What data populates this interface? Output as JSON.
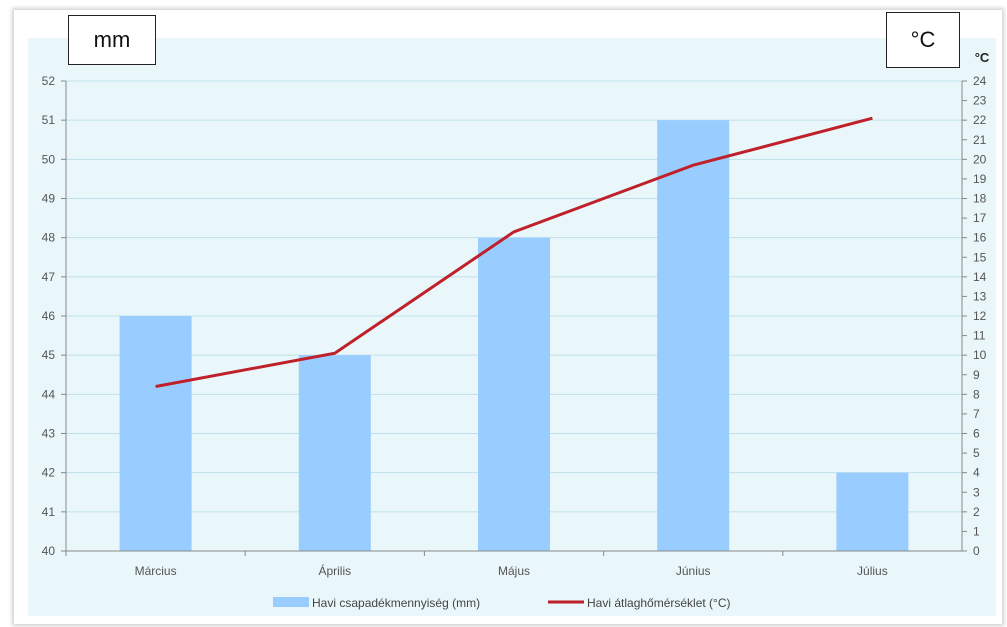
{
  "chart_data": {
    "type": "bar+line",
    "categories": [
      "Március",
      "Április",
      "Május",
      "Június",
      "Július"
    ],
    "series": [
      {
        "name": "Havi csapadékmennyiség (mm)",
        "type": "bar",
        "axis": "left",
        "values": [
          46,
          45,
          48,
          51,
          42
        ],
        "color": "#99ccff"
      },
      {
        "name": "Havi átlaghőmérséklet (°C)",
        "type": "line",
        "axis": "right",
        "values": [
          8.4,
          10.1,
          16.3,
          19.7,
          22.1
        ],
        "color": "#c0202a"
      }
    ],
    "y_left": {
      "unit_label": "mm",
      "min": 40,
      "max": 52,
      "step": 1
    },
    "y_right": {
      "unit_label": "°C",
      "axis_unit": "°C",
      "min": 0,
      "max": 24,
      "step": 1
    },
    "grid": true,
    "legend_position": "bottom-center",
    "plot_background": "#e9f7fb"
  }
}
